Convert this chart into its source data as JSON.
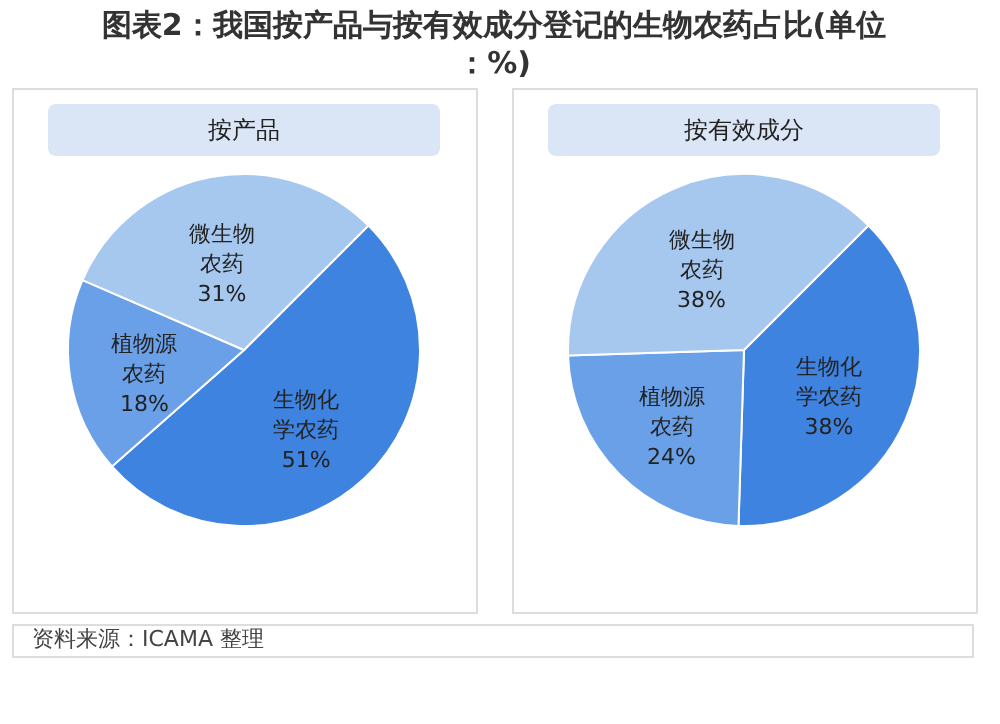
{
  "chart_data": [
    {
      "type": "pie",
      "title": "图表2：我国按产品与按有效成分登记的生物农药占比(单位：%)",
      "subtitle": "按产品",
      "categories": [
        "生物化学农药",
        "植物源农药",
        "微生物农药"
      ],
      "values": [
        51,
        18,
        31
      ],
      "value_labels": [
        "51%",
        "18%",
        "31%"
      ],
      "colors": [
        "#3f83e0",
        "#6aa0e8",
        "#a6c8ef"
      ],
      "annotations": [
        "资料来源：ICAMA 整理"
      ]
    },
    {
      "type": "pie",
      "subtitle": "按有效成分",
      "categories": [
        "生物化学农药",
        "植物源农药",
        "微生物农药"
      ],
      "values": [
        38,
        24,
        38
      ],
      "value_labels": [
        "38%",
        "24%",
        "38%"
      ],
      "colors": [
        "#3f83e0",
        "#6aa0e8",
        "#a6c8ef"
      ]
    }
  ]
}
